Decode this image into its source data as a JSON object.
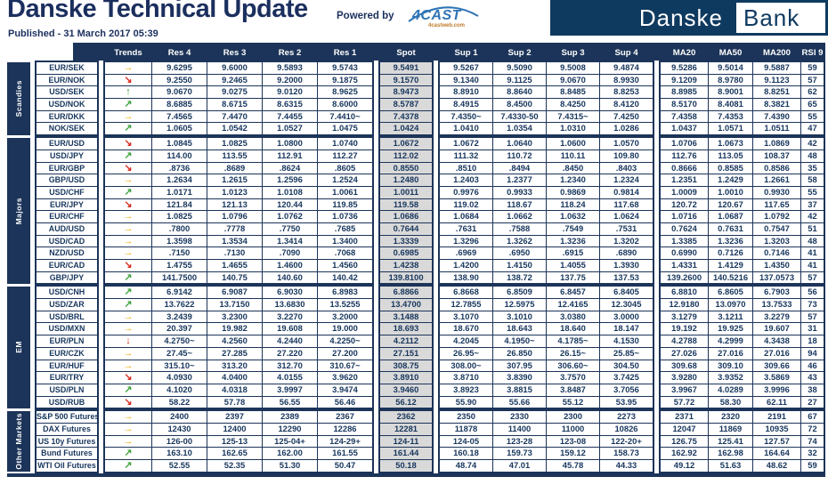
{
  "header": {
    "title": "Danske Technical Update",
    "published": "Published - 31 March 2017 05:39",
    "powered_by": "Powered by",
    "powered_logo": "4CAST",
    "powered_logo_sub": "4castweb.com",
    "logo_left": "Danske",
    "logo_right": "Bank"
  },
  "colors": {
    "navy": "#1c3459",
    "cell_text": "#17365d",
    "spot_bg": "#d9d9d9",
    "arrow_up_green": "#3fa33c",
    "arrow_side_amber": "#f2a900",
    "arrow_down_red": "#d92b1f",
    "logo_navy": "#0f3a60",
    "fourcast_blue": "#2f74b5"
  },
  "table": {
    "columns": [
      "Trends",
      "Res 4",
      "Res 3",
      "Res 2",
      "Res 1",
      "Spot",
      "Sup 1",
      "Sup 2",
      "Sup 3",
      "Sup 4",
      "MA20",
      "MA50",
      "MA200",
      "RSI 9"
    ],
    "sections": [
      {
        "label": "Scandies",
        "rows": [
          {
            "name": "EUR/SEK",
            "trend": "right",
            "values": [
              "9.6295",
              "9.6000",
              "9.5893",
              "9.5743",
              "9.5491",
              "9.5267",
              "9.5090",
              "9.5008",
              "9.4874",
              "9.5286",
              "9.5014",
              "9.5887",
              "59"
            ]
          },
          {
            "name": "EUR/NOK",
            "trend": "downright",
            "values": [
              "9.2550",
              "9.2465",
              "9.2000",
              "9.1875",
              "9.1570",
              "9.1340",
              "9.1125",
              "9.0670",
              "8.9930",
              "9.1209",
              "8.9780",
              "9.1123",
              "57"
            ]
          },
          {
            "name": "USD/SEK",
            "trend": "up",
            "values": [
              "9.0670",
              "9.0275",
              "9.0120",
              "8.9625",
              "8.9473",
              "8.8910",
              "8.8640",
              "8.8485",
              "8.8253",
              "8.8985",
              "8.9001",
              "8.8251",
              "62"
            ]
          },
          {
            "name": "USD/NOK",
            "trend": "upright",
            "values": [
              "8.6885",
              "8.6715",
              "8.6315",
              "8.6000",
              "8.5787",
              "8.4915",
              "8.4500",
              "8.4250",
              "8.4120",
              "8.5170",
              "8.4081",
              "8.3821",
              "65"
            ]
          },
          {
            "name": "EUR/DKK",
            "trend": "right",
            "values": [
              "7.4565",
              "7.4470",
              "7.4455",
              "7.4410~",
              "7.4378",
              "7.4350~",
              "7.4330-50",
              "7.4315~",
              "7.4250",
              "7.4358",
              "7.4353",
              "7.4390",
              "55"
            ]
          },
          {
            "name": "NOK/SEK",
            "trend": "upright",
            "values": [
              "1.0605",
              "1.0542",
              "1.0527",
              "1.0475",
              "1.0424",
              "1.0410",
              "1.0354",
              "1.0310",
              "1.0286",
              "1.0437",
              "1.0571",
              "1.0511",
              "47"
            ]
          }
        ]
      },
      {
        "label": "Majors",
        "rows": [
          {
            "name": "EUR/USD",
            "trend": "downright",
            "values": [
              "1.0845",
              "1.0825",
              "1.0800",
              "1.0740",
              "1.0672",
              "1.0672",
              "1.0640",
              "1.0600",
              "1.0570",
              "1.0706",
              "1.0673",
              "1.0869",
              "42"
            ]
          },
          {
            "name": "USD/JPY",
            "trend": "upright",
            "values": [
              "114.00",
              "113.55",
              "112.91",
              "112.27",
              "112.02",
              "111.32",
              "110.72",
              "110.11",
              "109.80",
              "112.76",
              "113.05",
              "108.37",
              "48"
            ]
          },
          {
            "name": "EUR/GBP",
            "trend": "downright",
            "values": [
              ".8736",
              ".8689",
              ".8624",
              ".8605",
              "0.8550",
              ".8510",
              ".8494",
              ".8450",
              ".8403",
              "0.8666",
              "0.8585",
              "0.8586",
              "35"
            ]
          },
          {
            "name": "GBP/USD",
            "trend": "right",
            "values": [
              "1.2634",
              "1.2615",
              "1.2596",
              "1.2524",
              "1.2480",
              "1.2403",
              "1.2377",
              "1.2340",
              "1.2324",
              "1.2351",
              "1.2429",
              "1.2661",
              "58"
            ]
          },
          {
            "name": "USD/CHF",
            "trend": "upright",
            "values": [
              "1.0171",
              "1.0123",
              "1.0108",
              "1.0061",
              "1.0011",
              "0.9976",
              "0.9933",
              "0.9869",
              "0.9814",
              "1.0009",
              "1.0010",
              "0.9930",
              "55"
            ]
          },
          {
            "name": "EUR/JPY",
            "trend": "downright",
            "values": [
              "121.84",
              "121.13",
              "120.44",
              "119.85",
              "119.58",
              "119.02",
              "118.67",
              "118.24",
              "117.68",
              "120.72",
              "120.67",
              "117.65",
              "37"
            ]
          },
          {
            "name": "EUR/CHF",
            "trend": "right",
            "values": [
              "1.0825",
              "1.0796",
              "1.0762",
              "1.0736",
              "1.0686",
              "1.0684",
              "1.0662",
              "1.0632",
              "1.0624",
              "1.0716",
              "1.0687",
              "1.0792",
              "42"
            ]
          },
          {
            "name": "AUD/USD",
            "trend": "right",
            "values": [
              ".7800",
              ".7778",
              ".7750",
              ".7685",
              "0.7644",
              ".7631",
              ".7588",
              ".7549",
              ".7531",
              "0.7624",
              "0.7631",
              "0.7547",
              "51"
            ]
          },
          {
            "name": "USD/CAD",
            "trend": "right",
            "values": [
              "1.3598",
              "1.3534",
              "1.3414",
              "1.3400",
              "1.3339",
              "1.3296",
              "1.3262",
              "1.3236",
              "1.3202",
              "1.3385",
              "1.3236",
              "1.3203",
              "48"
            ]
          },
          {
            "name": "NZD/USD",
            "trend": "right",
            "values": [
              ".7150",
              ".7130",
              ".7090",
              ".7068",
              "0.6985",
              ".6969",
              ".6950",
              ".6915",
              ".6890",
              "0.6990",
              "0.7126",
              "0.7146",
              "41"
            ]
          },
          {
            "name": "EUR/CAD",
            "trend": "downright",
            "values": [
              "1.4755",
              "1.4655",
              "1.4600",
              "1.4560",
              "1.4238",
              "1.4200",
              "1.4150",
              "1.4055",
              "1.3930",
              "1.4331",
              "1.4129",
              "1.4350",
              "41"
            ]
          },
          {
            "name": "GBP/JPY",
            "trend": "upright",
            "values": [
              "141.7500",
              "140.75",
              "140.60",
              "140.42",
              "139.8100",
              "138.90",
              "138.72",
              "137.75",
              "137.53",
              "139.2600",
              "140.5216",
              "137.0573",
              "57"
            ]
          }
        ]
      },
      {
        "label": "EM",
        "rows": [
          {
            "name": "USD/CNH",
            "trend": "upright",
            "values": [
              "6.9142",
              "6.9087",
              "6.9030",
              "6.8983",
              "6.8866",
              "6.8668",
              "6.8509",
              "6.8457",
              "6.8405",
              "6.8810",
              "6.8605",
              "6.7903",
              "56"
            ]
          },
          {
            "name": "USD/ZAR",
            "trend": "upright",
            "values": [
              "13.7622",
              "13.7150",
              "13.6830",
              "13.5255",
              "13.4700",
              "12.7855",
              "12.5975",
              "12.4165",
              "12.3045",
              "12.9180",
              "13.0970",
              "13.7533",
              "73"
            ]
          },
          {
            "name": "USD/BRL",
            "trend": "right",
            "values": [
              "3.2439",
              "3.2300",
              "3.2270",
              "3.2000",
              "3.1488",
              "3.1070",
              "3.1010",
              "3.0380",
              "3.0000",
              "3.1279",
              "3.1211",
              "3.2279",
              "57"
            ]
          },
          {
            "name": "USD/MXN",
            "trend": "right",
            "values": [
              "20.397",
              "19.982",
              "19.608",
              "19.000",
              "18.693",
              "18.670",
              "18.643",
              "18.640",
              "18.147",
              "19.192",
              "19.925",
              "19.607",
              "31"
            ]
          },
          {
            "name": "EUR/PLN",
            "trend": "down",
            "values": [
              "4.2750~",
              "4.2560",
              "4.2440",
              "4.2250~",
              "4.2112",
              "4.2045",
              "4.1950~",
              "4.1785~",
              "4.1530",
              "4.2788",
              "4.2999",
              "4.3438",
              "18"
            ]
          },
          {
            "name": "EUR/CZK",
            "trend": "right",
            "values": [
              "27.45~",
              "27.285",
              "27.220",
              "27.200",
              "27.151",
              "26.95~",
              "26.850",
              "26.15~",
              "25.85~",
              "27.026",
              "27.016",
              "27.016",
              "94"
            ]
          },
          {
            "name": "EUR/HUF",
            "trend": "right",
            "values": [
              "315.10~",
              "313.20",
              "312.70",
              "310.67~",
              "308.75",
              "308.00~",
              "307.95",
              "306.60~",
              "304.50",
              "309.68",
              "309.10",
              "309.66",
              "46"
            ]
          },
          {
            "name": "EUR/TRY",
            "trend": "downright",
            "values": [
              "4.0930",
              "4.0400",
              "4.0155",
              "3.9620",
              "3.8910",
              "3.8710",
              "3.8390",
              "3.7570",
              "3.7425",
              "3.9280",
              "3.9352",
              "3.5869",
              "43"
            ]
          },
          {
            "name": "USD/PLN",
            "trend": "upright",
            "values": [
              "4.1020",
              "4.0318",
              "3.9997",
              "3.9474",
              "3.9460",
              "3.8923",
              "3.8815",
              "3.8487",
              "3.7056",
              "3.9967",
              "4.0289",
              "3.9996",
              "38"
            ]
          },
          {
            "name": "USD/RUB",
            "trend": "downright",
            "values": [
              "58.22",
              "57.78",
              "56.55",
              "56.46",
              "56.12",
              "55.90",
              "55.66",
              "55.12",
              "53.95",
              "57.72",
              "58.30",
              "62.11",
              "27"
            ]
          }
        ]
      },
      {
        "label": "Other Markets",
        "rows": [
          {
            "name": "S&P 500 Futures",
            "trend": "right",
            "values": [
              "2400",
              "2397",
              "2389",
              "2367",
              "2362",
              "2350",
              "2330",
              "2300",
              "2273",
              "2371",
              "2320",
              "2191",
              "67"
            ]
          },
          {
            "name": "DAX Futures",
            "trend": "right",
            "values": [
              "12430",
              "12400",
              "12290",
              "12286",
              "12281",
              "11878",
              "11400",
              "11000",
              "10826",
              "12047",
              "11869",
              "10935",
              "72"
            ]
          },
          {
            "name": "US 10y Futures",
            "trend": "right",
            "values": [
              "126-00",
              "125-13",
              "125-04+",
              "124-29+",
              "124-11",
              "124-05",
              "123-28",
              "123-08",
              "122-20+",
              "126.75",
              "125.41",
              "127.57",
              "74"
            ]
          },
          {
            "name": "Bund Futures",
            "trend": "upright",
            "values": [
              "163.10",
              "162.65",
              "162.00",
              "161.55",
              "161.44",
              "160.18",
              "159.73",
              "159.12",
              "158.73",
              "162.92",
              "162.98",
              "164.64",
              "32"
            ]
          },
          {
            "name": "WTI Oil Futures",
            "trend": "upright",
            "values": [
              "52.55",
              "52.35",
              "51.30",
              "50.47",
              "50.18",
              "48.74",
              "47.01",
              "45.78",
              "44.33",
              "49.12",
              "51.63",
              "48.62",
              "59"
            ]
          }
        ]
      }
    ]
  }
}
